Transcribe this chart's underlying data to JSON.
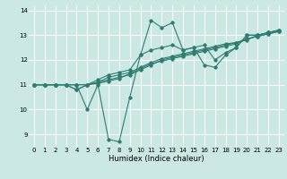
{
  "xlabel": "Humidex (Indice chaleur)",
  "xlim": [
    -0.5,
    23.5
  ],
  "ylim": [
    8.5,
    14.2
  ],
  "yticks": [
    9,
    10,
    11,
    12,
    13,
    14
  ],
  "xticks": [
    0,
    1,
    2,
    3,
    4,
    5,
    6,
    7,
    8,
    9,
    10,
    11,
    12,
    13,
    14,
    15,
    16,
    17,
    18,
    19,
    20,
    21,
    22,
    23
  ],
  "background_color": "#cce8e4",
  "grid_color": "#ffffff",
  "line_color": "#2e7d6e",
  "lines": [
    {
      "x": [
        0,
        1,
        2,
        3,
        4,
        5,
        6,
        7,
        8,
        9,
        10,
        11,
        12,
        13,
        14,
        15,
        16,
        17,
        18,
        19,
        20,
        21,
        22,
        23
      ],
      "y": [
        11,
        11,
        11,
        11,
        11,
        10,
        11,
        8.8,
        8.7,
        10.5,
        12.2,
        13.6,
        13.3,
        13.5,
        12.4,
        12.5,
        11.8,
        11.7,
        12.2,
        12.5,
        13.0,
        13.0,
        13.1,
        13.2
      ]
    },
    {
      "x": [
        0,
        1,
        2,
        3,
        4,
        5,
        6,
        7,
        8,
        9,
        10,
        11,
        12,
        13,
        14,
        15,
        16,
        17,
        18,
        19,
        20,
        21,
        22,
        23
      ],
      "y": [
        11,
        11,
        11,
        11,
        11,
        11,
        11.1,
        11.2,
        11.3,
        11.4,
        11.6,
        11.8,
        12.0,
        12.1,
        12.2,
        12.3,
        12.4,
        12.5,
        12.6,
        12.7,
        12.8,
        13.0,
        13.1,
        13.2
      ]
    },
    {
      "x": [
        0,
        1,
        2,
        3,
        4,
        5,
        6,
        7,
        8,
        9,
        10,
        11,
        12,
        13,
        14,
        15,
        16,
        17,
        18,
        19,
        20,
        21,
        22,
        23
      ],
      "y": [
        11,
        11,
        11,
        11,
        10.8,
        11,
        11.1,
        11.3,
        11.4,
        11.5,
        11.7,
        11.9,
        12.05,
        12.15,
        12.25,
        12.35,
        12.45,
        12.55,
        12.65,
        12.7,
        12.85,
        12.95,
        13.05,
        13.15
      ]
    },
    {
      "x": [
        0,
        1,
        2,
        3,
        4,
        5,
        6,
        7,
        8,
        9,
        10,
        11,
        12,
        13,
        14,
        15,
        16,
        17,
        18,
        19,
        20,
        21,
        22,
        23
      ],
      "y": [
        11,
        11,
        11,
        11,
        11,
        11,
        11.05,
        11.15,
        11.25,
        11.45,
        11.65,
        11.85,
        11.95,
        12.05,
        12.15,
        12.25,
        12.35,
        12.45,
        12.55,
        12.65,
        12.85,
        12.95,
        13.05,
        13.15
      ]
    },
    {
      "x": [
        0,
        1,
        2,
        3,
        4,
        5,
        6,
        7,
        8,
        9,
        10,
        11,
        12,
        13,
        14,
        15,
        16,
        17,
        18,
        19,
        20,
        21,
        22,
        23
      ],
      "y": [
        11,
        11,
        11,
        11,
        10.8,
        11,
        11.2,
        11.4,
        11.5,
        11.6,
        12.2,
        12.4,
        12.5,
        12.6,
        12.4,
        12.5,
        12.6,
        12.0,
        12.3,
        12.5,
        13.0,
        13.0,
        13.1,
        13.2
      ]
    }
  ]
}
